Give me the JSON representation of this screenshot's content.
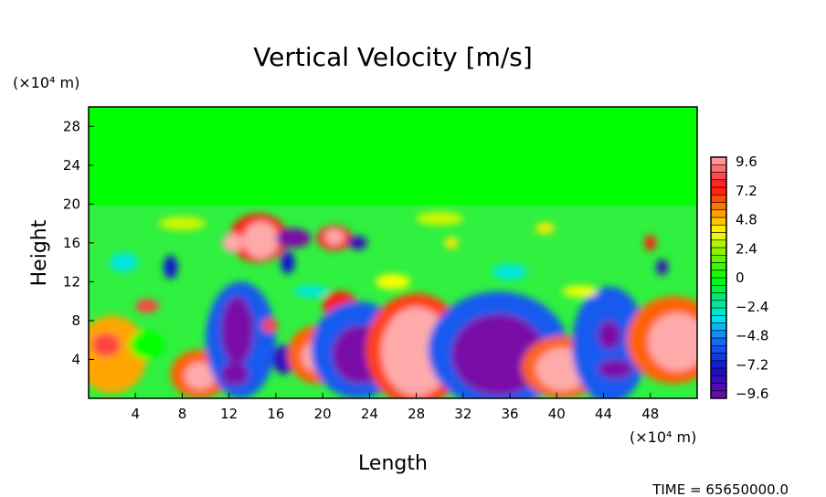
{
  "chart_data": {
    "type": "heatmap",
    "title": "Vertical Velocity [m/s]",
    "xlabel": "Length",
    "ylabel": "Height",
    "x_unit": "(×10⁴ m)",
    "y_unit": "(×10⁴ m)",
    "xlim": [
      0,
      52
    ],
    "ylim": [
      0,
      30
    ],
    "xticks": [
      "4",
      "8",
      "12",
      "16",
      "20",
      "24",
      "28",
      "32",
      "36",
      "40",
      "44",
      "48"
    ],
    "yticks": [
      "4",
      "8",
      "12",
      "16",
      "20",
      "24",
      "28"
    ],
    "colorbar": {
      "min": -9.6,
      "max": 9.6,
      "labels": [
        "9.6",
        "7.2",
        "4.8",
        "2.4",
        "0",
        "−2.4",
        "−4.8",
        "−7.2",
        "−9.6"
      ],
      "stops": [
        {
          "v": -9.6,
          "c": "#7a0aa8"
        },
        {
          "v": -7.2,
          "c": "#1010c8"
        },
        {
          "v": -4.8,
          "c": "#1478ff"
        },
        {
          "v": -3.2,
          "c": "#00e6f0"
        },
        {
          "v": -1.6,
          "c": "#00e878"
        },
        {
          "v": 0,
          "c": "#00ff00"
        },
        {
          "v": 2.4,
          "c": "#a0f000"
        },
        {
          "v": 3.6,
          "c": "#ffff00"
        },
        {
          "v": 5.2,
          "c": "#ff9900"
        },
        {
          "v": 7.2,
          "c": "#ff1010"
        },
        {
          "v": 9.6,
          "c": "#ffaaaa"
        }
      ]
    },
    "features": [
      {
        "x": 2,
        "y": 4.5,
        "rx": 3,
        "ry": 4,
        "v": 5
      },
      {
        "x": 1.5,
        "y": 5.5,
        "rx": 1.2,
        "ry": 1.2,
        "v": 8
      },
      {
        "x": 5,
        "y": 5.5,
        "rx": 1.5,
        "ry": 1.5,
        "v": 0
      },
      {
        "x": 5,
        "y": 9.5,
        "rx": 1,
        "ry": 0.7,
        "v": 8
      },
      {
        "x": 9.5,
        "y": 2.5,
        "rx": 2.5,
        "ry": 2.5,
        "v": 6
      },
      {
        "x": 9.5,
        "y": 2.3,
        "rx": 1.3,
        "ry": 1.4,
        "v": 9.6
      },
      {
        "x": 13,
        "y": 6,
        "rx": 3,
        "ry": 6,
        "v": -5.5
      },
      {
        "x": 12.7,
        "y": 7,
        "rx": 1.4,
        "ry": 3.5,
        "v": -9.6
      },
      {
        "x": 12.5,
        "y": 2.5,
        "rx": 1.2,
        "ry": 1.2,
        "v": -9.6
      },
      {
        "x": 15.5,
        "y": 7.5,
        "rx": 0.7,
        "ry": 0.7,
        "v": 8
      },
      {
        "x": 16.7,
        "y": 4,
        "rx": 1,
        "ry": 1.5,
        "v": -8
      },
      {
        "x": 19.5,
        "y": 4.5,
        "rx": 2.5,
        "ry": 3,
        "v": 6
      },
      {
        "x": 19.5,
        "y": 4.3,
        "rx": 1.3,
        "ry": 1.6,
        "v": 9.6
      },
      {
        "x": 21.5,
        "y": 9.5,
        "rx": 1.5,
        "ry": 1.5,
        "v": 7
      },
      {
        "x": 23,
        "y": 5,
        "rx": 4,
        "ry": 5,
        "v": -5.5
      },
      {
        "x": 23.2,
        "y": 4.5,
        "rx": 2.4,
        "ry": 3,
        "v": -9.6
      },
      {
        "x": 28,
        "y": 5,
        "rx": 4.3,
        "ry": 5.8,
        "v": 6.5
      },
      {
        "x": 28,
        "y": 4.8,
        "rx": 3,
        "ry": 4.6,
        "v": 9.6
      },
      {
        "x": 35,
        "y": 5,
        "rx": 6,
        "ry": 6,
        "v": -5.5
      },
      {
        "x": 35,
        "y": 4.5,
        "rx": 4,
        "ry": 4.2,
        "v": -9.6
      },
      {
        "x": 40.5,
        "y": 3.2,
        "rx": 3.5,
        "ry": 3.2,
        "v": 6
      },
      {
        "x": 40.5,
        "y": 3,
        "rx": 2.3,
        "ry": 2.2,
        "v": 9.6
      },
      {
        "x": 44.5,
        "y": 5.5,
        "rx": 3.2,
        "ry": 6,
        "v": -5.5
      },
      {
        "x": 44.5,
        "y": 6.5,
        "rx": 1,
        "ry": 1.5,
        "v": -9.6
      },
      {
        "x": 45,
        "y": 3,
        "rx": 1.5,
        "ry": 1,
        "v": -9.6
      },
      {
        "x": 50,
        "y": 6,
        "rx": 4,
        "ry": 4.5,
        "v": 6
      },
      {
        "x": 50.3,
        "y": 5.8,
        "rx": 2.5,
        "ry": 3,
        "v": 9.6
      },
      {
        "x": 14.5,
        "y": 16.5,
        "rx": 2.5,
        "ry": 2.5,
        "v": 7
      },
      {
        "x": 14.7,
        "y": 16.3,
        "rx": 1.5,
        "ry": 1.9,
        "v": 9.6
      },
      {
        "x": 12.3,
        "y": 16,
        "rx": 0.9,
        "ry": 1,
        "v": 9.6
      },
      {
        "x": 17.5,
        "y": 16.5,
        "rx": 1.5,
        "ry": 1,
        "v": -9.6
      },
      {
        "x": 21,
        "y": 16.5,
        "rx": 1.5,
        "ry": 1.3,
        "v": 7.5
      },
      {
        "x": 21,
        "y": 16.6,
        "rx": 0.8,
        "ry": 0.8,
        "v": 9.6
      },
      {
        "x": 23,
        "y": 16,
        "rx": 0.8,
        "ry": 0.7,
        "v": -8
      },
      {
        "x": 7,
        "y": 13.5,
        "rx": 0.6,
        "ry": 1.2,
        "v": -7
      },
      {
        "x": 17,
        "y": 14,
        "rx": 0.6,
        "ry": 1.2,
        "v": -7
      },
      {
        "x": 48,
        "y": 16,
        "rx": 0.5,
        "ry": 0.8,
        "v": 7
      },
      {
        "x": 49,
        "y": 13.5,
        "rx": 0.5,
        "ry": 0.8,
        "v": -8
      },
      {
        "x": 39,
        "y": 17.5,
        "rx": 0.8,
        "ry": 0.6,
        "v": 4
      },
      {
        "x": 31,
        "y": 16,
        "rx": 0.6,
        "ry": 0.6,
        "v": 4
      },
      {
        "x": 3,
        "y": 14,
        "rx": 1.2,
        "ry": 1,
        "v": -3
      },
      {
        "x": 26,
        "y": 12,
        "rx": 1.5,
        "ry": 0.8,
        "v": 3.5
      },
      {
        "x": 36,
        "y": 13,
        "rx": 1.5,
        "ry": 0.8,
        "v": -3
      },
      {
        "x": 30,
        "y": 18.5,
        "rx": 2,
        "ry": 0.7,
        "v": 3
      },
      {
        "x": 8,
        "y": 18,
        "rx": 2,
        "ry": 0.7,
        "v": 3
      },
      {
        "x": 42,
        "y": 11,
        "rx": 1.5,
        "ry": 0.6,
        "v": 3.5
      },
      {
        "x": 19,
        "y": 11,
        "rx": 1.5,
        "ry": 0.6,
        "v": -3
      }
    ]
  },
  "footer": {
    "time_label": "TIME = 65650000.0"
  }
}
